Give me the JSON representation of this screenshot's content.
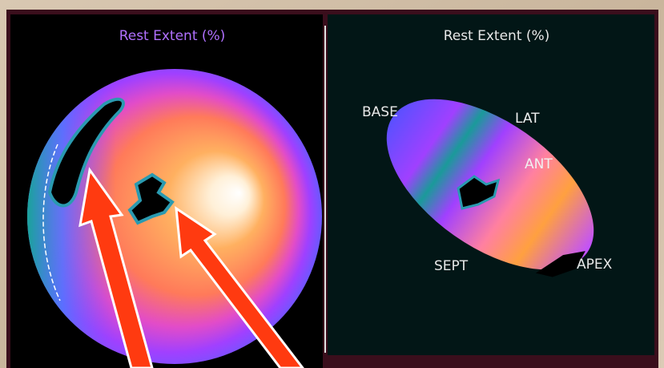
{
  "panels": [
    {
      "title": "Rest Extent (%)"
    },
    {
      "title": "Rest Extent (%)",
      "labels": [
        "BASE",
        "LAT",
        "ANT",
        "SEPT",
        "APEX"
      ]
    }
  ]
}
